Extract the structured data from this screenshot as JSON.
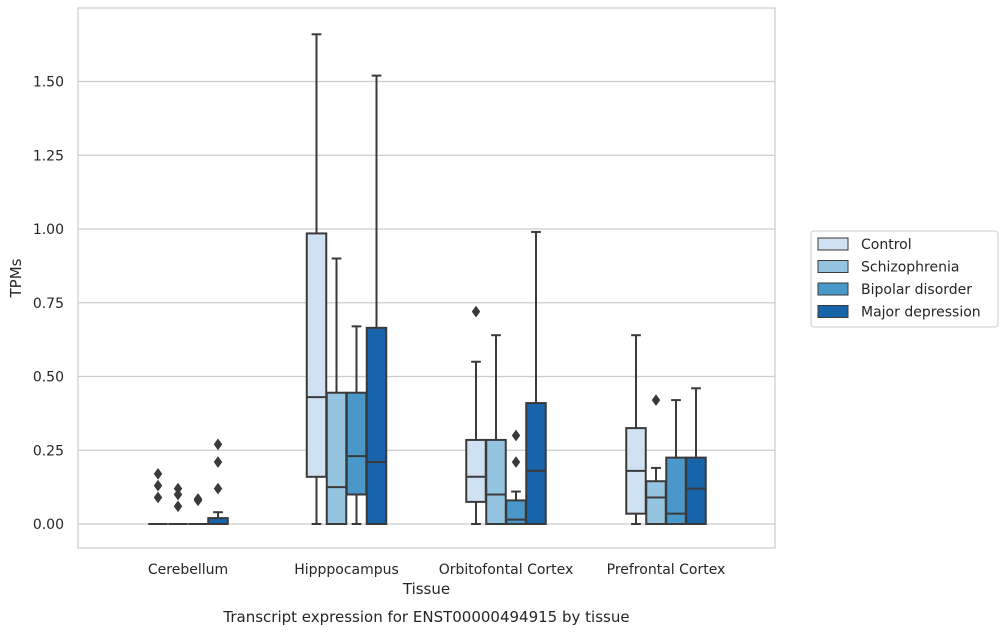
{
  "chart_data": {
    "type": "box",
    "xlabel": "Tissue",
    "ylabel": "TPMs",
    "caption": "Transcript expression for ENST00000494915 by tissue",
    "ylim": [
      -0.08,
      1.75
    ],
    "yticks": [
      "0.00",
      "0.25",
      "0.50",
      "0.75",
      "1.00",
      "1.25",
      "1.50"
    ],
    "grid": true,
    "legend_position": "right",
    "categories": [
      "Cerebellum",
      "Hipppocampus",
      "Orbitofontal Cortex",
      "Prefrontal Cortex"
    ],
    "series": [
      {
        "name": "Control",
        "color": "#d0e1f2",
        "boxes": [
          {
            "whislo": 0,
            "q1": 0,
            "med": 0,
            "q3": 0,
            "whishi": 0,
            "fliers": [
              0.09,
              0.13,
              0.17
            ]
          },
          {
            "whislo": 0,
            "q1": 0.16,
            "med": 0.43,
            "q3": 0.985,
            "whishi": 1.66,
            "fliers": []
          },
          {
            "whislo": 0,
            "q1": 0.075,
            "med": 0.16,
            "q3": 0.285,
            "whishi": 0.55,
            "fliers": [
              0.72
            ]
          },
          {
            "whislo": 0,
            "q1": 0.035,
            "med": 0.18,
            "q3": 0.325,
            "whishi": 0.64,
            "fliers": []
          }
        ]
      },
      {
        "name": "Schizophrenia",
        "color": "#94c4df",
        "boxes": [
          {
            "whislo": 0,
            "q1": 0,
            "med": 0,
            "q3": 0,
            "whishi": 0,
            "fliers": [
              0.06,
              0.1,
              0.12
            ]
          },
          {
            "whislo": 0,
            "q1": 0,
            "med": 0.125,
            "q3": 0.445,
            "whishi": 0.9,
            "fliers": []
          },
          {
            "whislo": 0,
            "q1": 0,
            "med": 0.1,
            "q3": 0.285,
            "whishi": 0.64,
            "fliers": []
          },
          {
            "whislo": 0,
            "q1": 0,
            "med": 0.09,
            "q3": 0.145,
            "whishi": 0.19,
            "fliers": [
              0.42
            ]
          }
        ]
      },
      {
        "name": "Bipolar disorder",
        "color": "#4a98c9",
        "boxes": [
          {
            "whislo": 0,
            "q1": 0,
            "med": 0,
            "q3": 0,
            "whishi": 0,
            "fliers": [
              0.08,
              0.085
            ]
          },
          {
            "whislo": 0,
            "q1": 0.1,
            "med": 0.23,
            "q3": 0.445,
            "whishi": 0.67,
            "fliers": []
          },
          {
            "whislo": 0,
            "q1": 0,
            "med": 0.015,
            "q3": 0.08,
            "whishi": 0.11,
            "fliers": [
              0.21,
              0.3
            ]
          },
          {
            "whislo": 0,
            "q1": 0,
            "med": 0.035,
            "q3": 0.225,
            "whishi": 0.42,
            "fliers": []
          }
        ]
      },
      {
        "name": "Major depression",
        "color": "#1764ab",
        "boxes": [
          {
            "whislo": 0,
            "q1": 0,
            "med": 0,
            "q3": 0.02,
            "whishi": 0.04,
            "fliers": [
              0.12,
              0.21,
              0.27
            ]
          },
          {
            "whislo": 0,
            "q1": 0,
            "med": 0.21,
            "q3": 0.665,
            "whishi": 1.52,
            "fliers": []
          },
          {
            "whislo": 0,
            "q1": 0,
            "med": 0.18,
            "q3": 0.41,
            "whishi": 0.99,
            "fliers": []
          },
          {
            "whislo": 0,
            "q1": 0,
            "med": 0.12,
            "q3": 0.225,
            "whishi": 0.46,
            "fliers": []
          }
        ]
      }
    ],
    "colors": {
      "line": "#3a3a3a",
      "grid": "#cccccc",
      "frame": "#cccccc",
      "text": "#262626"
    }
  }
}
